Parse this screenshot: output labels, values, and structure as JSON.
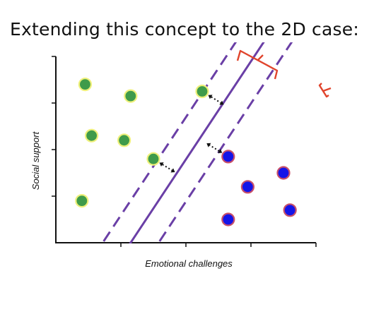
{
  "slide": {
    "title": "Extending this concept to the 2D case:"
  },
  "chart_data": {
    "type": "scatter",
    "title": "Extending this concept to the 2D case:",
    "xlabel": "Emotional challenges",
    "ylabel": "Social support",
    "xlim": [
      0,
      4
    ],
    "ylim": [
      0,
      4
    ],
    "ticks": [
      0,
      1,
      2,
      3,
      4
    ],
    "grid": false,
    "series": [
      {
        "class": "green",
        "fill": "#3f9b4a",
        "stroke": "#eef07a",
        "points": [
          {
            "x": 0.45,
            "y": 3.4
          },
          {
            "x": 1.15,
            "y": 3.15
          },
          {
            "x": 0.55,
            "y": 2.3
          },
          {
            "x": 1.05,
            "y": 2.2
          },
          {
            "x": 2.25,
            "y": 3.25
          },
          {
            "x": 1.5,
            "y": 1.8
          },
          {
            "x": 0.4,
            "y": 0.9
          }
        ]
      },
      {
        "class": "blue",
        "fill": "#1414e8",
        "stroke": "#c8506a",
        "points": [
          {
            "x": 2.65,
            "y": 1.85
          },
          {
            "x": 2.95,
            "y": 1.2
          },
          {
            "x": 3.5,
            "y": 1.5
          },
          {
            "x": 2.65,
            "y": 0.5
          },
          {
            "x": 3.6,
            "y": 0.7
          }
        ]
      }
    ],
    "decision_boundary": {
      "color": "#6a3fa6",
      "line": {
        "x_at_y0": 1.15,
        "x_at_y4": 3.05
      },
      "margin_upper": {
        "x_at_y0": 0.72,
        "x_at_y4": 2.62
      },
      "margin_lower": {
        "x_at_y0": 1.58,
        "x_at_y4": 3.48
      }
    },
    "support_arrows": [
      {
        "from": {
          "x": 2.25,
          "y": 3.25
        },
        "to": {
          "x": 2.6,
          "y": 2.95
        }
      },
      {
        "from": {
          "x": 1.5,
          "y": 1.8
        },
        "to": {
          "x": 1.85,
          "y": 1.5
        }
      },
      {
        "from": {
          "x": 2.65,
          "y": 1.85
        },
        "to": {
          "x": 2.3,
          "y": 2.15
        }
      }
    ],
    "annotations": [
      {
        "kind": "bracket",
        "color": "#e0442c",
        "label": ""
      },
      {
        "kind": "bracket-small",
        "color": "#e0442c",
        "label": ""
      }
    ]
  }
}
